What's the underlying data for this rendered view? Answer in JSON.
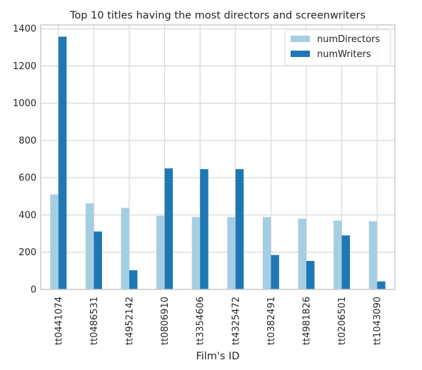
{
  "chart_data": {
    "type": "bar",
    "title": "Top 10 titles having the most directors and screenwriters",
    "xlabel": "Film's ID",
    "ylabel": "",
    "categories": [
      "tt0441074",
      "tt0486531",
      "tt4952142",
      "tt0806910",
      "tt3354606",
      "tt4325472",
      "tt0382491",
      "tt4981826",
      "tt0206501",
      "tt1043090"
    ],
    "series": [
      {
        "name": "numDirectors",
        "color": "#a6cee3",
        "values": [
          510,
          462,
          438,
          395,
          389,
          389,
          389,
          380,
          370,
          366
        ]
      },
      {
        "name": "numWriters",
        "color": "#1f78b4",
        "values": [
          1357,
          311,
          103,
          650,
          646,
          646,
          185,
          153,
          290,
          43
        ]
      }
    ],
    "ylim": [
      0,
      1420
    ],
    "yticks": [
      0,
      200,
      400,
      600,
      800,
      1000,
      1200,
      1400
    ],
    "grid": true,
    "legend_position": "top-right"
  }
}
